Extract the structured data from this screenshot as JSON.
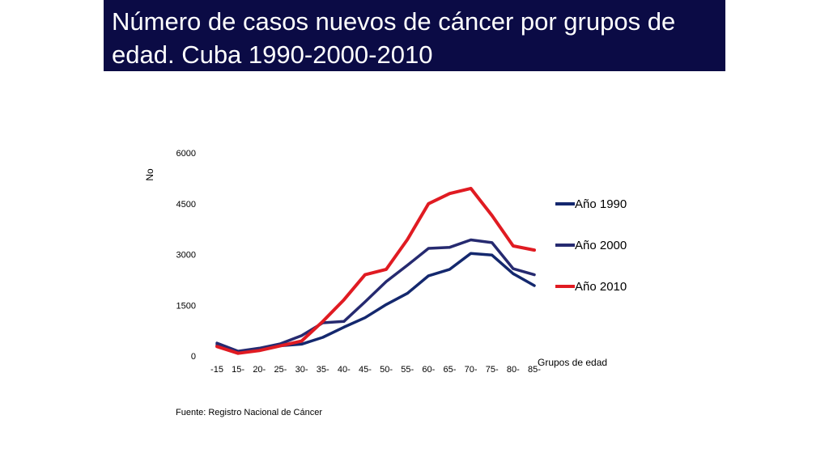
{
  "title": "Número de casos nuevos de cáncer por grupos de edad.  Cuba 1990-2000-2010",
  "source": "Fuente: Registro Nacional de Cáncer",
  "colors": {
    "banner": "#0b0b45",
    "title_text": "#ffffff"
  },
  "chart_data": {
    "type": "line",
    "title": "",
    "xlabel": "Grupos de edad",
    "ylabel": "No",
    "ylim": [
      0,
      6000
    ],
    "yticks": [
      0,
      1500,
      3000,
      4500,
      6000
    ],
    "grid": false,
    "legend_position": "right",
    "categories": [
      "-15",
      "15-",
      "20-",
      "25-",
      "30-",
      "35-",
      "40-",
      "45-",
      "50-",
      "55-",
      "60-",
      "65-",
      "70-",
      "75-",
      "80-",
      "85-"
    ],
    "series": [
      {
        "name": "Año 1990",
        "color": "#14286e",
        "values": [
          330,
          130,
          220,
          300,
          350,
          550,
          850,
          1130,
          1520,
          1850,
          2370,
          2560,
          3030,
          2980,
          2430,
          2080
        ]
      },
      {
        "name": "Año 2000",
        "color": "#262a70",
        "values": [
          380,
          140,
          230,
          360,
          600,
          980,
          1020,
          1600,
          2200,
          2680,
          3180,
          3210,
          3430,
          3350,
          2580,
          2400
        ]
      },
      {
        "name": "Año 2010",
        "color": "#e01b22",
        "values": [
          280,
          80,
          160,
          300,
          440,
          1020,
          1660,
          2400,
          2560,
          3440,
          4500,
          4800,
          4950,
          4150,
          3250,
          3130
        ]
      }
    ]
  }
}
